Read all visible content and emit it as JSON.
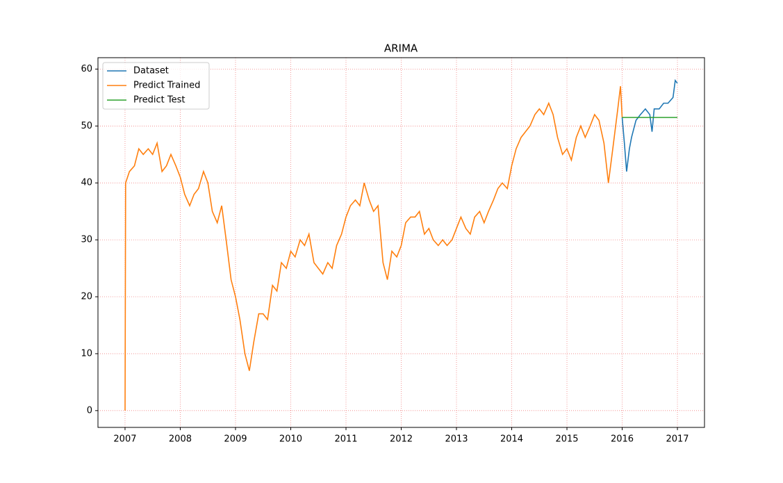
{
  "chart_data": {
    "type": "line",
    "title": "ARIMA",
    "xlim": [
      2006.51,
      2017.49
    ],
    "xticks": [
      2007,
      2008,
      2009,
      2010,
      2011,
      2012,
      2013,
      2014,
      2015,
      2016,
      2017
    ],
    "ylim": [
      -2.95,
      62.0
    ],
    "yticks": [
      0,
      10,
      20,
      30,
      40,
      50,
      60
    ],
    "grid": true,
    "grid_color": "#f08080",
    "legend": "upper left",
    "series": [
      {
        "name": "Dataset",
        "color": "#1f77b4",
        "x": [
          2016.0,
          2016.04,
          2016.08,
          2016.13,
          2016.17,
          2016.25,
          2016.33,
          2016.42,
          2016.5,
          2016.54,
          2016.58,
          2016.67,
          2016.75,
          2016.83,
          2016.92,
          2016.96,
          2017.0
        ],
        "values": [
          51.5,
          47,
          42,
          46,
          48,
          51,
          52,
          53,
          52,
          49,
          53,
          53,
          54,
          54,
          55,
          58,
          57.5
        ]
      },
      {
        "name": "Predict Trained",
        "color": "#ff7f0e",
        "x": [
          2007.0,
          2007.01,
          2007.08,
          2007.17,
          2007.25,
          2007.33,
          2007.42,
          2007.5,
          2007.58,
          2007.67,
          2007.75,
          2007.83,
          2007.92,
          2008.0,
          2008.08,
          2008.17,
          2008.25,
          2008.33,
          2008.42,
          2008.5,
          2008.58,
          2008.67,
          2008.75,
          2008.83,
          2008.92,
          2009.0,
          2009.08,
          2009.17,
          2009.25,
          2009.33,
          2009.42,
          2009.5,
          2009.58,
          2009.67,
          2009.75,
          2009.83,
          2009.92,
          2010.0,
          2010.08,
          2010.17,
          2010.25,
          2010.33,
          2010.42,
          2010.5,
          2010.58,
          2010.67,
          2010.75,
          2010.83,
          2010.92,
          2011.0,
          2011.08,
          2011.17,
          2011.25,
          2011.33,
          2011.42,
          2011.5,
          2011.58,
          2011.67,
          2011.75,
          2011.83,
          2011.92,
          2012.0,
          2012.08,
          2012.17,
          2012.25,
          2012.33,
          2012.42,
          2012.5,
          2012.58,
          2012.67,
          2012.75,
          2012.83,
          2012.92,
          2013.0,
          2013.08,
          2013.17,
          2013.25,
          2013.33,
          2013.42,
          2013.5,
          2013.58,
          2013.67,
          2013.75,
          2013.83,
          2013.92,
          2014.0,
          2014.08,
          2014.17,
          2014.25,
          2014.33,
          2014.42,
          2014.5,
          2014.58,
          2014.67,
          2014.75,
          2014.83,
          2014.92,
          2015.0,
          2015.08,
          2015.17,
          2015.25,
          2015.33,
          2015.42,
          2015.5,
          2015.58,
          2015.67,
          2015.75,
          2015.83,
          2015.92,
          2015.97,
          2016.0
        ],
        "values": [
          0,
          40,
          42,
          43,
          46,
          45,
          46,
          45,
          47,
          42,
          43,
          45,
          43,
          41,
          38,
          36,
          38,
          39,
          42,
          40,
          35,
          33,
          36,
          30,
          23,
          20,
          16,
          10,
          7,
          12,
          17,
          17,
          16,
          22,
          21,
          26,
          25,
          28,
          27,
          30,
          29,
          31,
          26,
          25,
          24,
          26,
          25,
          29,
          31,
          34,
          36,
          37,
          36,
          40,
          37,
          35,
          36,
          26,
          23,
          28,
          27,
          29,
          33,
          34,
          34,
          35,
          31,
          32,
          30,
          29,
          30,
          29,
          30,
          32,
          34,
          32,
          31,
          34,
          35,
          33,
          35,
          37,
          39,
          40,
          39,
          43,
          46,
          48,
          49,
          50,
          52,
          53,
          52,
          54,
          52,
          48,
          45,
          46,
          44,
          48,
          50,
          48,
          50,
          52,
          51,
          47,
          40,
          46,
          53,
          57,
          51.5
        ]
      },
      {
        "name": "Predict Test",
        "color": "#2ca02c",
        "x": [
          2016.0,
          2017.0
        ],
        "values": [
          51.5,
          51.5
        ]
      }
    ]
  }
}
